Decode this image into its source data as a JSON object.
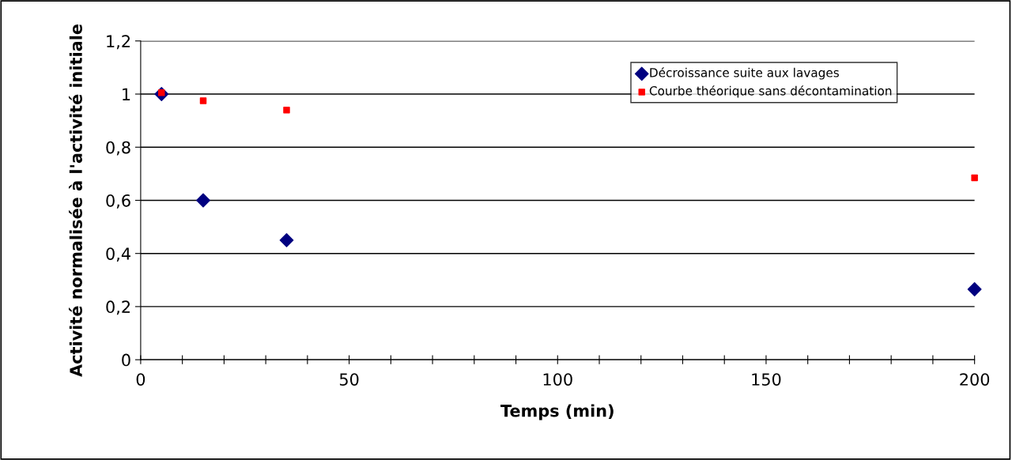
{
  "chart_data": {
    "type": "scatter",
    "xlabel": "Temps (min)",
    "ylabel": "Activité normalisée à l'activité initiale",
    "x": [
      5,
      15,
      35,
      200
    ],
    "series": [
      {
        "name": "Décroissance suite aux lavages",
        "color": "#000080",
        "marker": "diamond",
        "values": [
          1.0,
          0.6,
          0.45,
          0.265
        ]
      },
      {
        "name": "Courbe théorique sans décontamination",
        "color": "#ff0000",
        "marker": "square",
        "values": [
          1.005,
          0.975,
          0.94,
          0.685
        ]
      }
    ],
    "xlim": [
      0,
      200
    ],
    "xticks": [
      0,
      {
        "value": 10,
        "label": null
      },
      {
        "value": 20,
        "label": null
      },
      {
        "value": 30,
        "label": null
      },
      {
        "value": 40,
        "label": null
      },
      50,
      {
        "value": 60,
        "label": null
      },
      {
        "value": 70,
        "label": null
      },
      {
        "value": 80,
        "label": null
      },
      {
        "value": 90,
        "label": null
      },
      100,
      {
        "value": 110,
        "label": null
      },
      {
        "value": 120,
        "label": null
      },
      {
        "value": 130,
        "label": null
      },
      {
        "value": 140,
        "label": null
      },
      150,
      {
        "value": 160,
        "label": null
      },
      {
        "value": 170,
        "label": null
      },
      {
        "value": 180,
        "label": null
      },
      {
        "value": 190,
        "label": null
      },
      200
    ],
    "ylim": [
      0,
      1.2
    ],
    "yticks": [
      0,
      {
        "value": 0.2,
        "label": "0,2"
      },
      {
        "value": 0.4,
        "label": "0,4"
      },
      {
        "value": 0.6,
        "label": "0,6"
      },
      {
        "value": 0.8,
        "label": "0,8"
      },
      1,
      {
        "value": 1.2,
        "label": "1,2"
      }
    ],
    "grid": "y",
    "legend": "top right"
  }
}
